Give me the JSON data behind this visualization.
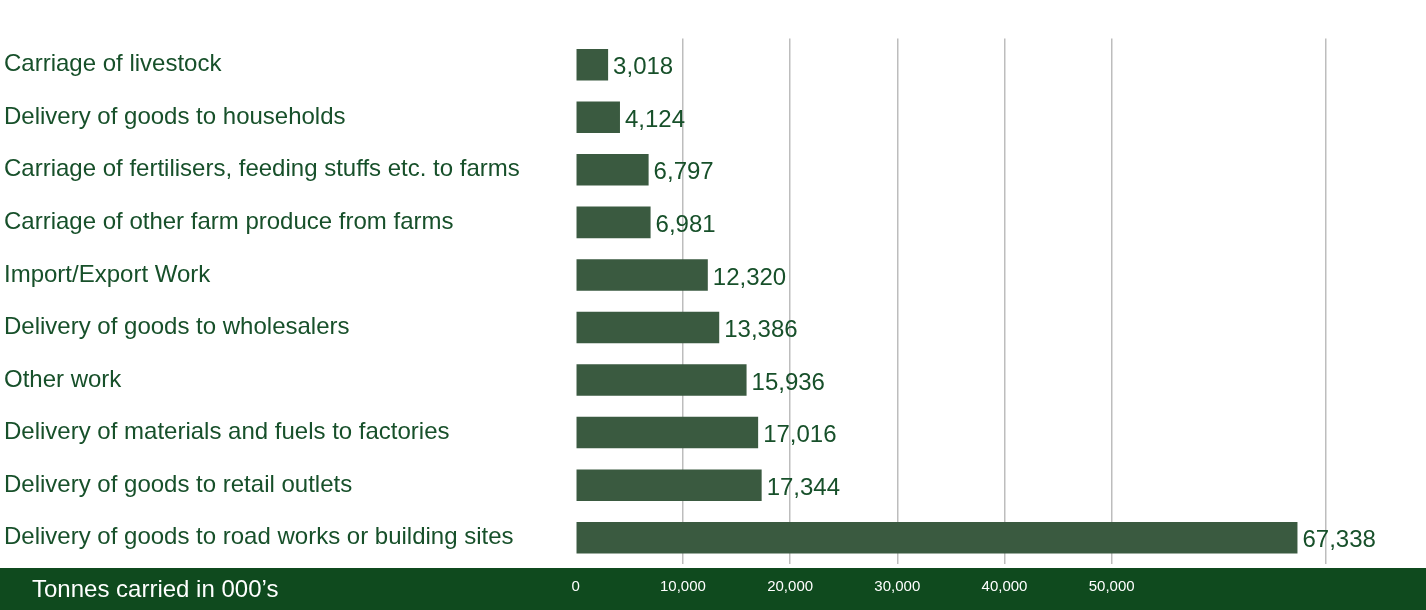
{
  "chart_data": {
    "type": "bar",
    "orientation": "horizontal",
    "categories": [
      "Carriage of livestock",
      "Delivery of goods to households",
      "Carriage of fertilisers, feeding stuffs etc. to farms",
      "Carriage of other farm produce from farms",
      "Import/Export Work",
      "Delivery of goods to wholesalers",
      "Other work",
      "Delivery of materials and fuels to factories",
      "Delivery of goods to retail outlets",
      "Delivery of goods to road works or building sites"
    ],
    "values": [
      3018,
      4124,
      6797,
      6981,
      12320,
      13386,
      15936,
      17016,
      17344,
      67338
    ],
    "value_labels": [
      "3,018",
      "4,124",
      "6,797",
      "6,981",
      "12,320",
      "13,386",
      "15,936",
      "17,016",
      "17,344",
      "67,338"
    ],
    "color": "#3a5a40",
    "xlabel": "Tonnes carried in 000’s",
    "xlim": [
      0,
      70000
    ],
    "xticks": [
      {
        "value": 0,
        "label": "0"
      },
      {
        "value": 10000,
        "label": "10,000"
      },
      {
        "value": 20000,
        "label": "20,000"
      },
      {
        "value": 30000,
        "label": "30,000"
      },
      {
        "value": 40000,
        "label": "40,000"
      },
      {
        "value": 50000,
        "label": "50,000"
      },
      {
        "value": 70000,
        "label": null
      }
    ],
    "grid": "x",
    "legend": false
  }
}
